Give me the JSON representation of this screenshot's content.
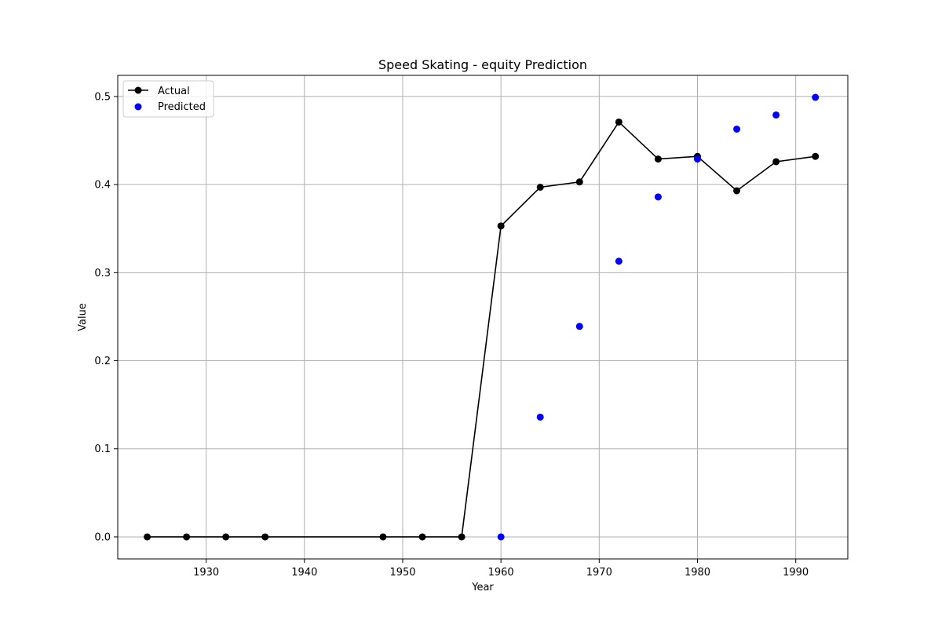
{
  "chart_data": {
    "type": "line",
    "title": "Speed Skating - equity Prediction",
    "xlabel": "Year",
    "ylabel": "Value",
    "xlim": [
      1921,
      1995.3
    ],
    "ylim": [
      -0.025,
      0.524
    ],
    "x_ticks": [
      1930,
      1940,
      1950,
      1960,
      1970,
      1980,
      1990
    ],
    "y_ticks": [
      0.0,
      0.1,
      0.2,
      0.3,
      0.4,
      0.5
    ],
    "grid": true,
    "legend": {
      "position": "top-left"
    },
    "series": [
      {
        "name": "Actual",
        "kind": "line-marker",
        "color": "#000000",
        "x": [
          1924,
          1928,
          1932,
          1936,
          1948,
          1952,
          1956,
          1960,
          1964,
          1968,
          1972,
          1976,
          1980,
          1984,
          1988,
          1992
        ],
        "y": [
          0.0,
          0.0,
          0.0,
          0.0,
          0.0,
          0.0,
          0.0,
          0.353,
          0.397,
          0.403,
          0.471,
          0.429,
          0.432,
          0.393,
          0.426,
          0.432
        ]
      },
      {
        "name": "Predicted",
        "kind": "scatter",
        "color": "#0000ff",
        "x": [
          1960,
          1964,
          1968,
          1972,
          1976,
          1980,
          1984,
          1988,
          1992
        ],
        "y": [
          0.0,
          0.136,
          0.239,
          0.313,
          0.386,
          0.429,
          0.463,
          0.479,
          0.499
        ]
      }
    ]
  }
}
